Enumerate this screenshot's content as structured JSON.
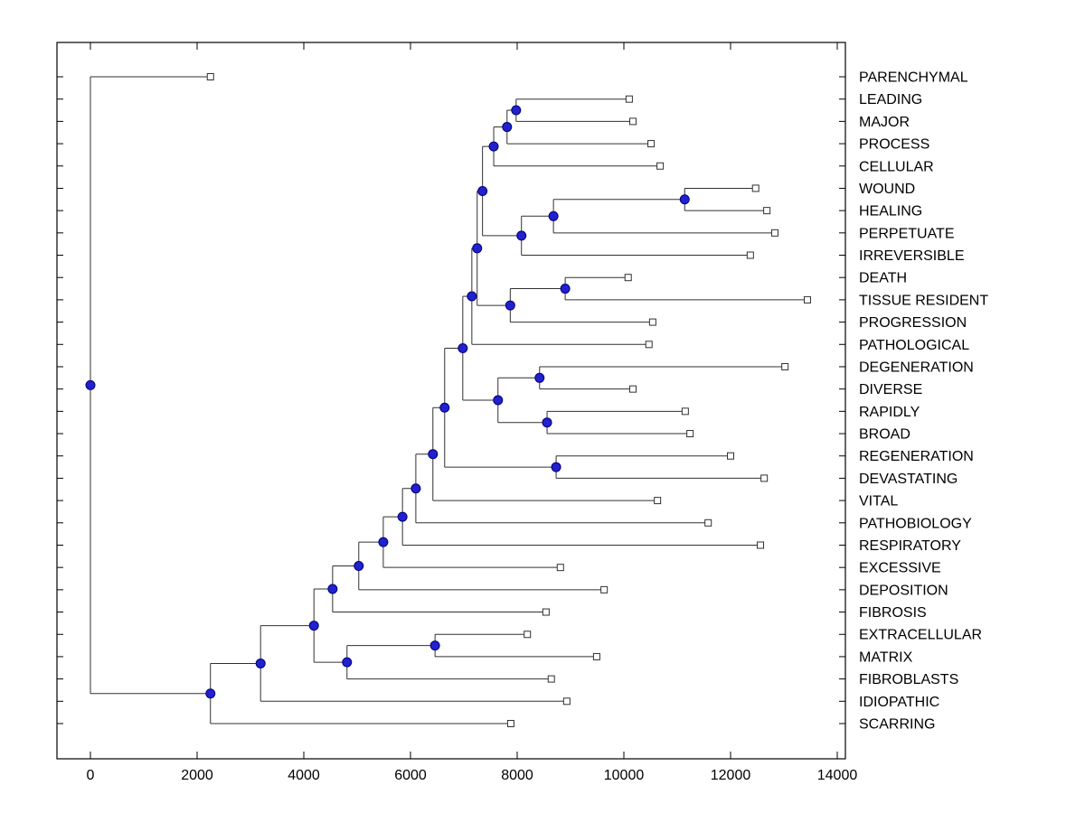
{
  "figure": {
    "background": "#ffffff",
    "description": "Hierarchical clustering dendrogram (phylogenetic-style tree), horizontal orientation with leaf labels on the right"
  },
  "chart_data": {
    "type": "dendrogram",
    "orientation": "horizontal",
    "title": "",
    "xlabel": "",
    "ylabel": "",
    "x_axis": {
      "min": 0,
      "max": 14000,
      "ticks": [
        0,
        2000,
        4000,
        6000,
        8000,
        10000,
        12000,
        14000
      ]
    },
    "leaves": [
      {
        "label": "PARENCHYMAL",
        "distance": 2250
      },
      {
        "label": "LEADING",
        "distance": 10100
      },
      {
        "label": "MAJOR",
        "distance": 10170
      },
      {
        "label": "PROCESS",
        "distance": 10510
      },
      {
        "label": "CELLULAR",
        "distance": 10680
      },
      {
        "label": "WOUND",
        "distance": 12470
      },
      {
        "label": "HEALING",
        "distance": 12680
      },
      {
        "label": "PERPETUATE",
        "distance": 12830
      },
      {
        "label": "IRREVERSIBLE",
        "distance": 12370
      },
      {
        "label": "DEATH",
        "distance": 10080
      },
      {
        "label": "TISSUE RESIDENT",
        "distance": 13440
      },
      {
        "label": "PROGRESSION",
        "distance": 10540
      },
      {
        "label": "PATHOLOGICAL",
        "distance": 10470
      },
      {
        "label": "DEGENERATION",
        "distance": 13020
      },
      {
        "label": "DIVERSE",
        "distance": 10170
      },
      {
        "label": "RAPIDLY",
        "distance": 11150
      },
      {
        "label": "BROAD",
        "distance": 11240
      },
      {
        "label": "REGENERATION",
        "distance": 12000
      },
      {
        "label": "DEVASTATING",
        "distance": 12630
      },
      {
        "label": "VITAL",
        "distance": 10630
      },
      {
        "label": "PATHOBIOLOGY",
        "distance": 11580
      },
      {
        "label": "RESPIRATORY",
        "distance": 12560
      },
      {
        "label": "EXCESSIVE",
        "distance": 8810
      },
      {
        "label": "DEPOSITION",
        "distance": 9630
      },
      {
        "label": "FIBROSIS",
        "distance": 8540
      },
      {
        "label": "EXTRACELLULAR",
        "distance": 8190
      },
      {
        "label": "MATRIX",
        "distance": 9490
      },
      {
        "label": "FIBROBLASTS",
        "distance": 8640
      },
      {
        "label": "IDIOPATHIC",
        "distance": 8930
      },
      {
        "label": "SCARRING",
        "distance": 7880
      }
    ],
    "merges": [
      {
        "children": [
          1,
          2
        ],
        "distance": 7980
      },
      {
        "children": [
          30,
          3
        ],
        "distance": 7810
      },
      {
        "children": [
          31,
          4
        ],
        "distance": 7560
      },
      {
        "children": [
          5,
          6
        ],
        "distance": 11140
      },
      {
        "children": [
          33,
          7
        ],
        "distance": 8680
      },
      {
        "children": [
          34,
          8
        ],
        "distance": 8080
      },
      {
        "children": [
          32,
          35
        ],
        "distance": 7350
      },
      {
        "children": [
          9,
          10
        ],
        "distance": 8900
      },
      {
        "children": [
          37,
          11
        ],
        "distance": 7870
      },
      {
        "children": [
          36,
          38
        ],
        "distance": 7250
      },
      {
        "children": [
          39,
          12
        ],
        "distance": 7150
      },
      {
        "children": [
          13,
          14
        ],
        "distance": 8420
      },
      {
        "children": [
          15,
          16
        ],
        "distance": 8560
      },
      {
        "children": [
          41,
          42
        ],
        "distance": 7640
      },
      {
        "children": [
          40,
          43
        ],
        "distance": 6980
      },
      {
        "children": [
          17,
          18
        ],
        "distance": 8730
      },
      {
        "children": [
          44,
          45
        ],
        "distance": 6640
      },
      {
        "children": [
          46,
          19
        ],
        "distance": 6420
      },
      {
        "children": [
          47,
          20
        ],
        "distance": 6100
      },
      {
        "children": [
          48,
          21
        ],
        "distance": 5850
      },
      {
        "children": [
          49,
          22
        ],
        "distance": 5490
      },
      {
        "children": [
          50,
          23
        ],
        "distance": 5030
      },
      {
        "children": [
          51,
          24
        ],
        "distance": 4540
      },
      {
        "children": [
          25,
          26
        ],
        "distance": 6460
      },
      {
        "children": [
          53,
          27
        ],
        "distance": 4810
      },
      {
        "children": [
          52,
          54
        ],
        "distance": 4190
      },
      {
        "children": [
          55,
          28
        ],
        "distance": 3190
      },
      {
        "children": [
          56,
          29
        ],
        "distance": 2250
      },
      {
        "children": [
          0,
          57
        ],
        "distance": 0
      }
    ],
    "legend": null,
    "grid": false,
    "style": {
      "line_color": "#303030",
      "node_fill": "#2121cd",
      "node_stroke": "#00007a",
      "leaf_fill": "#ffffff",
      "leaf_stroke": "#303030",
      "axis_color": "#000000",
      "text_color": "#000000"
    }
  }
}
